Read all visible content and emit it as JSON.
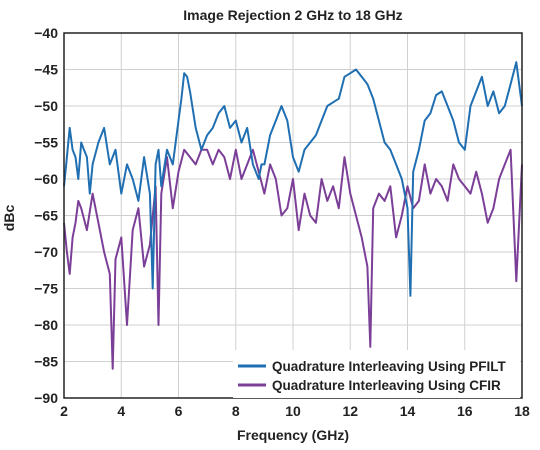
{
  "chart_data": {
    "type": "line",
    "title": "Image Rejection 2 GHz to 18 GHz",
    "xlabel": "Frequency (GHz)",
    "ylabel": "dBc",
    "xlim": [
      2,
      18
    ],
    "ylim": [
      -90,
      -40
    ],
    "xticks": [
      2,
      4,
      6,
      8,
      10,
      12,
      14,
      16,
      18
    ],
    "yticks": [
      -40,
      -45,
      -50,
      -55,
      -60,
      -65,
      -70,
      -75,
      -80,
      -85,
      -90
    ],
    "xtick_labels": [
      "2",
      "4",
      "6",
      "8",
      "10",
      "12",
      "14",
      "16",
      "18"
    ],
    "ytick_labels": [
      "−40",
      "−45",
      "−50",
      "−55",
      "−60",
      "−65",
      "−70",
      "−75",
      "−80",
      "−85",
      "−90"
    ],
    "grid": true,
    "legend_position": "bottom-right",
    "series": [
      {
        "name": "Quadrature Interleaving Using PFILT",
        "color": "#1f6fb2",
        "x": [
          2.0,
          2.1,
          2.2,
          2.3,
          2.4,
          2.5,
          2.6,
          2.7,
          2.8,
          2.9,
          3.0,
          3.2,
          3.4,
          3.6,
          3.8,
          4.0,
          4.2,
          4.4,
          4.6,
          4.8,
          5.0,
          5.1,
          5.2,
          5.3,
          5.4,
          5.6,
          5.8,
          6.0,
          6.1,
          6.2,
          6.3,
          6.4,
          6.6,
          6.8,
          7.0,
          7.2,
          7.4,
          7.6,
          7.8,
          8.0,
          8.2,
          8.4,
          8.6,
          8.8,
          8.9,
          9.0,
          9.2,
          9.4,
          9.6,
          9.8,
          10.0,
          10.2,
          10.4,
          10.6,
          10.8,
          11.0,
          11.2,
          11.4,
          11.6,
          11.8,
          12.0,
          12.2,
          12.4,
          12.6,
          12.8,
          13.0,
          13.2,
          13.4,
          13.6,
          13.8,
          14.0,
          14.1,
          14.2,
          14.4,
          14.6,
          14.8,
          15.0,
          15.2,
          15.4,
          15.6,
          15.8,
          16.0,
          16.2,
          16.4,
          16.6,
          16.8,
          17.0,
          17.2,
          17.4,
          17.6,
          17.8,
          18.0
        ],
        "y": [
          -61,
          -57,
          -53,
          -56,
          -57,
          -60,
          -55,
          -56,
          -57,
          -62,
          -58,
          -55,
          -53,
          -58,
          -56,
          -62,
          -58,
          -60,
          -63,
          -57,
          -62,
          -75,
          -58,
          -56,
          -61,
          -56,
          -58,
          -52,
          -49,
          -45.5,
          -46,
          -48,
          -53,
          -56,
          -54,
          -53,
          -51,
          -50,
          -53,
          -52,
          -55,
          -53,
          -58,
          -60,
          -58,
          -58,
          -54,
          -52,
          -50,
          -52,
          -57,
          -59,
          -56,
          -55,
          -54,
          -52,
          -50,
          -49.5,
          -49,
          -46,
          -45.5,
          -45,
          -46,
          -47,
          -49,
          -52,
          -55,
          -56,
          -58,
          -60,
          -64,
          -76,
          -59,
          -56,
          -52,
          -51,
          -48.5,
          -48,
          -50,
          -52,
          -55,
          -56,
          -50,
          -48,
          -46,
          -50,
          -48,
          -51,
          -50,
          -47,
          -44,
          -50
        ]
      },
      {
        "name": "Quadrature Interleaving Using CFIR",
        "color": "#7b3f98",
        "x": [
          2.0,
          2.1,
          2.2,
          2.3,
          2.4,
          2.5,
          2.6,
          2.8,
          3.0,
          3.2,
          3.4,
          3.6,
          3.7,
          3.8,
          4.0,
          4.2,
          4.4,
          4.6,
          4.8,
          5.0,
          5.2,
          5.3,
          5.4,
          5.6,
          5.8,
          6.0,
          6.2,
          6.4,
          6.6,
          6.8,
          7.0,
          7.2,
          7.4,
          7.6,
          7.8,
          8.0,
          8.2,
          8.4,
          8.6,
          8.8,
          9.0,
          9.2,
          9.4,
          9.6,
          9.8,
          10.0,
          10.2,
          10.4,
          10.6,
          10.8,
          11.0,
          11.2,
          11.4,
          11.6,
          11.8,
          12.0,
          12.2,
          12.4,
          12.6,
          12.7,
          12.8,
          13.0,
          13.2,
          13.4,
          13.6,
          13.8,
          14.0,
          14.2,
          14.4,
          14.6,
          14.8,
          15.0,
          15.2,
          15.4,
          15.6,
          15.8,
          16.0,
          16.2,
          16.4,
          16.6,
          16.8,
          17.0,
          17.2,
          17.4,
          17.6,
          17.8,
          18.0
        ],
        "y": [
          -66,
          -70,
          -73,
          -68,
          -66,
          -63,
          -64,
          -67,
          -62,
          -66,
          -70,
          -73,
          -86,
          -71,
          -68,
          -80,
          -67,
          -64,
          -72,
          -69,
          -61,
          -80,
          -62,
          -57,
          -64,
          -59,
          -56,
          -57,
          -58,
          -56,
          -56,
          -58,
          -56,
          -57,
          -60,
          -56,
          -60,
          -58,
          -56,
          -59,
          -62,
          -58,
          -60,
          -65,
          -64,
          -60,
          -67,
          -62,
          -65,
          -66,
          -60,
          -63,
          -61,
          -64,
          -57,
          -62,
          -65,
          -68,
          -72,
          -83,
          -64,
          -62,
          -63,
          -61,
          -68,
          -65,
          -61,
          -64,
          -63,
          -58,
          -62,
          -60,
          -61,
          -63,
          -58,
          -60,
          -61,
          -62,
          -59,
          -62,
          -66,
          -64,
          -60,
          -58,
          -56,
          -74,
          -58
        ]
      }
    ]
  }
}
